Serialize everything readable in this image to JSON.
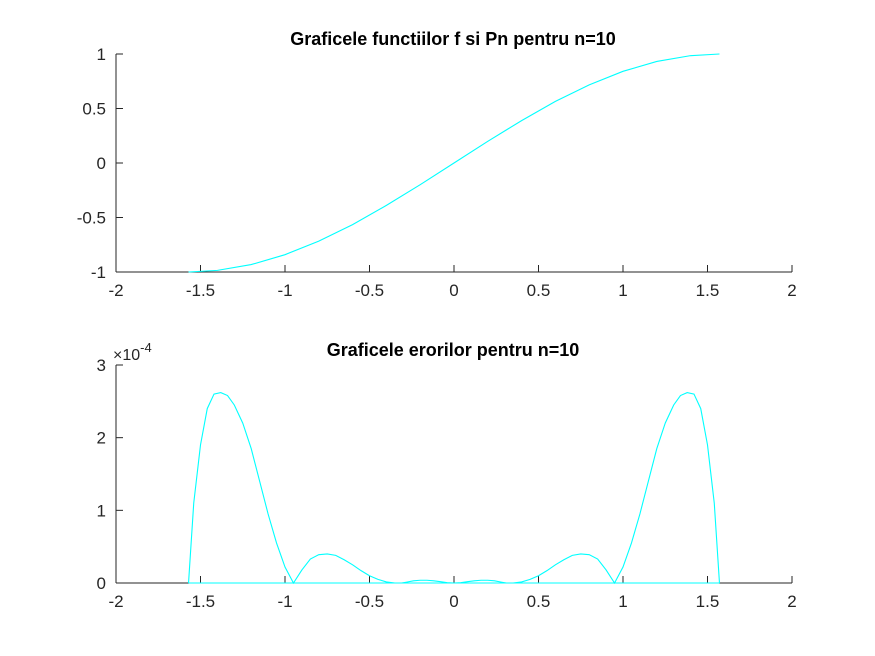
{
  "chart_data": [
    {
      "type": "line",
      "title": "Graficele functiilor f si Pn pentru n=10",
      "xlabel": "",
      "ylabel": "",
      "xlim": [
        -2,
        2
      ],
      "ylim": [
        -1,
        1
      ],
      "xticks": [
        -2,
        -1.5,
        -1,
        -0.5,
        0,
        0.5,
        1,
        1.5,
        2
      ],
      "xtick_labels": [
        "-2",
        "-1.5",
        "-1",
        "-0.5",
        "0",
        "0.5",
        "1",
        "1.5",
        "2"
      ],
      "yticks": [
        -1,
        -0.5,
        0,
        0.5,
        1
      ],
      "ytick_labels": [
        "-1",
        "-0.5",
        "0",
        "0.5",
        "1"
      ],
      "grid": false,
      "series": [
        {
          "color": "#00FFFF",
          "x": [
            -1.5708,
            -1.4,
            -1.2,
            -1.0,
            -0.8,
            -0.6,
            -0.4,
            -0.2,
            0,
            0.2,
            0.4,
            0.6,
            0.8,
            1.0,
            1.2,
            1.4,
            1.5708
          ],
          "y": [
            -1.0,
            -0.985,
            -0.932,
            -0.841,
            -0.717,
            -0.565,
            -0.389,
            -0.199,
            0.0,
            0.199,
            0.389,
            0.565,
            0.717,
            0.841,
            0.932,
            0.985,
            1.0
          ]
        }
      ]
    },
    {
      "type": "line",
      "title": "Graficele erorilor pentru n=10",
      "xlabel": "",
      "ylabel": "",
      "y_exponent_label": "×10",
      "y_exponent_power": "-4",
      "xlim": [
        -2,
        2
      ],
      "ylim": [
        0,
        3
      ],
      "xticks": [
        -2,
        -1.5,
        -1,
        -0.5,
        0,
        0.5,
        1,
        1.5,
        2
      ],
      "xtick_labels": [
        "-2",
        "-1.5",
        "-1",
        "-0.5",
        "0",
        "0.5",
        "1",
        "1.5",
        "2"
      ],
      "yticks": [
        0,
        1,
        2,
        3
      ],
      "ytick_labels": [
        "0",
        "1",
        "2",
        "3"
      ],
      "grid": false,
      "series": [
        {
          "color": "#00FFFF",
          "x": [
            -1.5708,
            -1.5708,
            -1.54,
            -1.5,
            -1.46,
            -1.42,
            -1.38,
            -1.34,
            -1.3,
            -1.25,
            -1.2,
            -1.15,
            -1.1,
            -1.05,
            -1.0,
            -0.95,
            -0.9,
            -0.85,
            -0.8,
            -0.75,
            -0.7,
            -0.65,
            -0.6,
            -0.55,
            -0.5,
            -0.45,
            -0.4,
            -0.35,
            -0.31,
            -0.28,
            -0.24,
            -0.2,
            -0.16,
            -0.12,
            -0.08,
            -0.04,
            0.0,
            0.04,
            0.08,
            0.12,
            0.16,
            0.2,
            0.24,
            0.28,
            0.31,
            0.35,
            0.4,
            0.45,
            0.5,
            0.55,
            0.6,
            0.65,
            0.7,
            0.75,
            0.8,
            0.85,
            0.9,
            0.95,
            1.0,
            1.05,
            1.1,
            1.15,
            1.2,
            1.25,
            1.3,
            1.34,
            1.38,
            1.42,
            1.46,
            1.5,
            1.54,
            1.5708,
            1.5708
          ],
          "y": [
            0.0,
            0.0,
            1.1,
            1.9,
            2.4,
            2.6,
            2.62,
            2.58,
            2.45,
            2.2,
            1.85,
            1.4,
            0.95,
            0.55,
            0.22,
            0.0,
            0.18,
            0.33,
            0.39,
            0.4,
            0.38,
            0.32,
            0.25,
            0.17,
            0.1,
            0.05,
            0.015,
            0.0,
            0.0,
            0.012,
            0.03,
            0.038,
            0.038,
            0.03,
            0.018,
            0.005,
            0.0,
            0.005,
            0.018,
            0.03,
            0.038,
            0.038,
            0.03,
            0.012,
            0.0,
            0.0,
            0.015,
            0.05,
            0.1,
            0.17,
            0.25,
            0.32,
            0.38,
            0.4,
            0.39,
            0.33,
            0.18,
            0.0,
            0.22,
            0.55,
            0.95,
            1.4,
            1.85,
            2.2,
            2.45,
            2.58,
            2.62,
            2.6,
            2.4,
            1.9,
            1.1,
            0.0,
            0.0
          ]
        },
        {
          "color": "#00FFFF",
          "x": [
            -1.5708,
            1.5708
          ],
          "y": [
            0.0,
            0.0
          ]
        }
      ]
    }
  ]
}
